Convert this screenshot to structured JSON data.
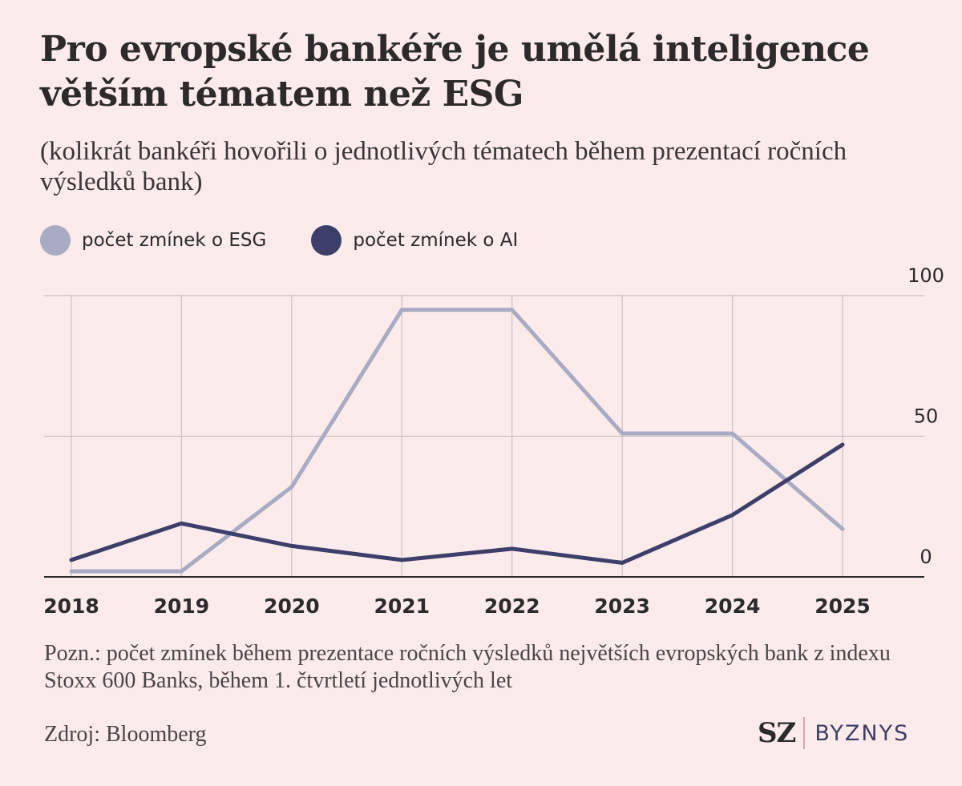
{
  "header": {
    "title": "Pro evropské bankéře je umělá inteligence větším tématem než ESG",
    "subtitle": "(kolikrát bankéři hovořili o jednotlivých tématech během prezentací ročních výsledků bank)"
  },
  "legend": {
    "esg_label": "počet zmínek o ESG",
    "ai_label": "počet zmínek o AI"
  },
  "colors": {
    "background": "#fbebeb",
    "esg": "#a9abc4",
    "ai": "#3d3f6b",
    "grid": "#cdc1c4",
    "axis": "#2b2b2b"
  },
  "chart_data": {
    "type": "line",
    "x": [
      "2018",
      "2019",
      "2020",
      "2021",
      "2022",
      "2023",
      "2024",
      "2025"
    ],
    "series": [
      {
        "name": "počet zmínek o ESG",
        "values": [
          2,
          2,
          32,
          95,
          95,
          51,
          51,
          17
        ]
      },
      {
        "name": "počet zmínek o AI",
        "values": [
          6,
          19,
          11,
          6,
          10,
          5,
          22,
          47
        ]
      }
    ],
    "ylim": [
      0,
      100
    ],
    "yticks": [
      0,
      50,
      100
    ],
    "y_axis_side": "right",
    "grid": true
  },
  "footer": {
    "note": "Pozn.: počet zmínek během prezentace ročních výsledků největších evropských bank z indexu Stoxx 600 Banks, během 1. čtvrtletí jednotlivých let",
    "source": "Zdroj: Bloomberg",
    "logo_left": "SZ",
    "logo_right": "BYZNYS"
  }
}
